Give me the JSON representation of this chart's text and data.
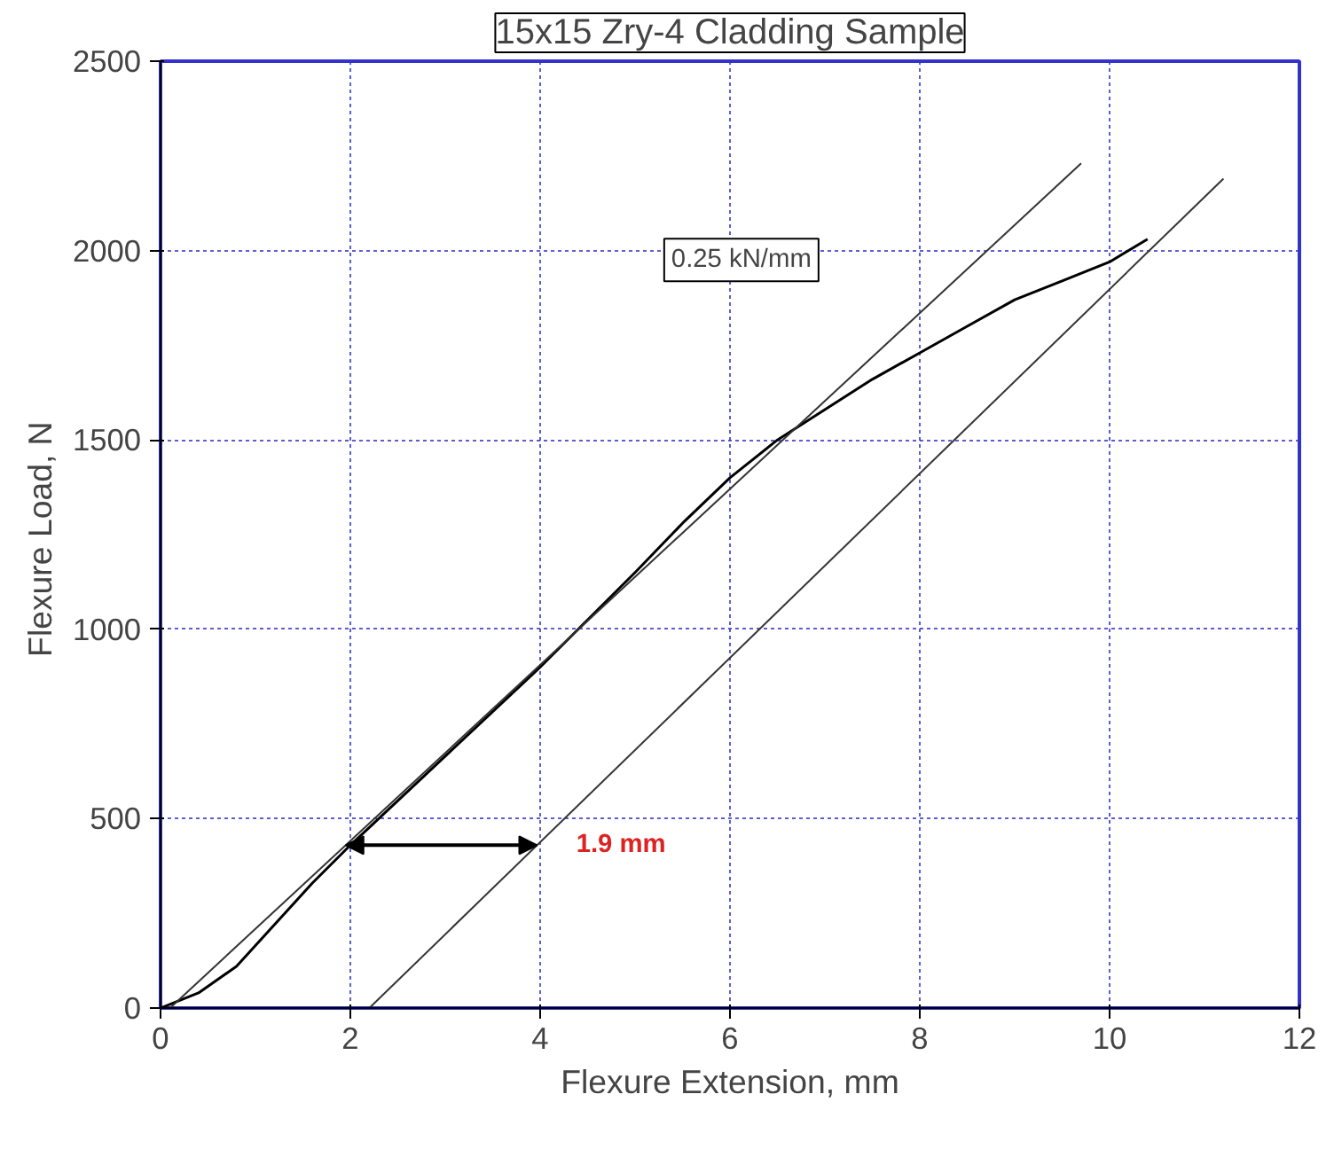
{
  "chart_data": {
    "type": "line",
    "title": "15x15 Zry-4 Cladding Sample",
    "xlabel": "Flexure Extension, mm",
    "ylabel": "Flexure Load,  N",
    "xlim": [
      0,
      12
    ],
    "ylim": [
      0,
      2500
    ],
    "xticks": [
      0,
      2,
      4,
      6,
      8,
      10,
      12
    ],
    "yticks": [
      0,
      500,
      1000,
      1500,
      2000,
      2500
    ],
    "grid": true,
    "line_style": "solid",
    "marker": "none",
    "series": [
      {
        "color": "#000000",
        "x": [
          0,
          0.4,
          0.8,
          1.2,
          1.6,
          2,
          3,
          4,
          5,
          5.5,
          6,
          6.5,
          7,
          7.5,
          8,
          8.5,
          9,
          9.5,
          10,
          10.4
        ],
        "values": [
          0,
          40,
          110,
          220,
          330,
          430,
          665,
          900,
          1150,
          1280,
          1400,
          1500,
          1580,
          1660,
          1730,
          1800,
          1870,
          1920,
          1970,
          2030
        ]
      },
      {
        "color": "#333333",
        "x": [
          0.1,
          9.7
        ],
        "values": [
          0,
          2230
        ]
      },
      {
        "color": "#333333",
        "x": [
          2.2,
          11.2
        ],
        "values": [
          0,
          2190
        ]
      }
    ],
    "annotations": [
      "0.25 kN/mm",
      "1.9 mm"
    ]
  }
}
